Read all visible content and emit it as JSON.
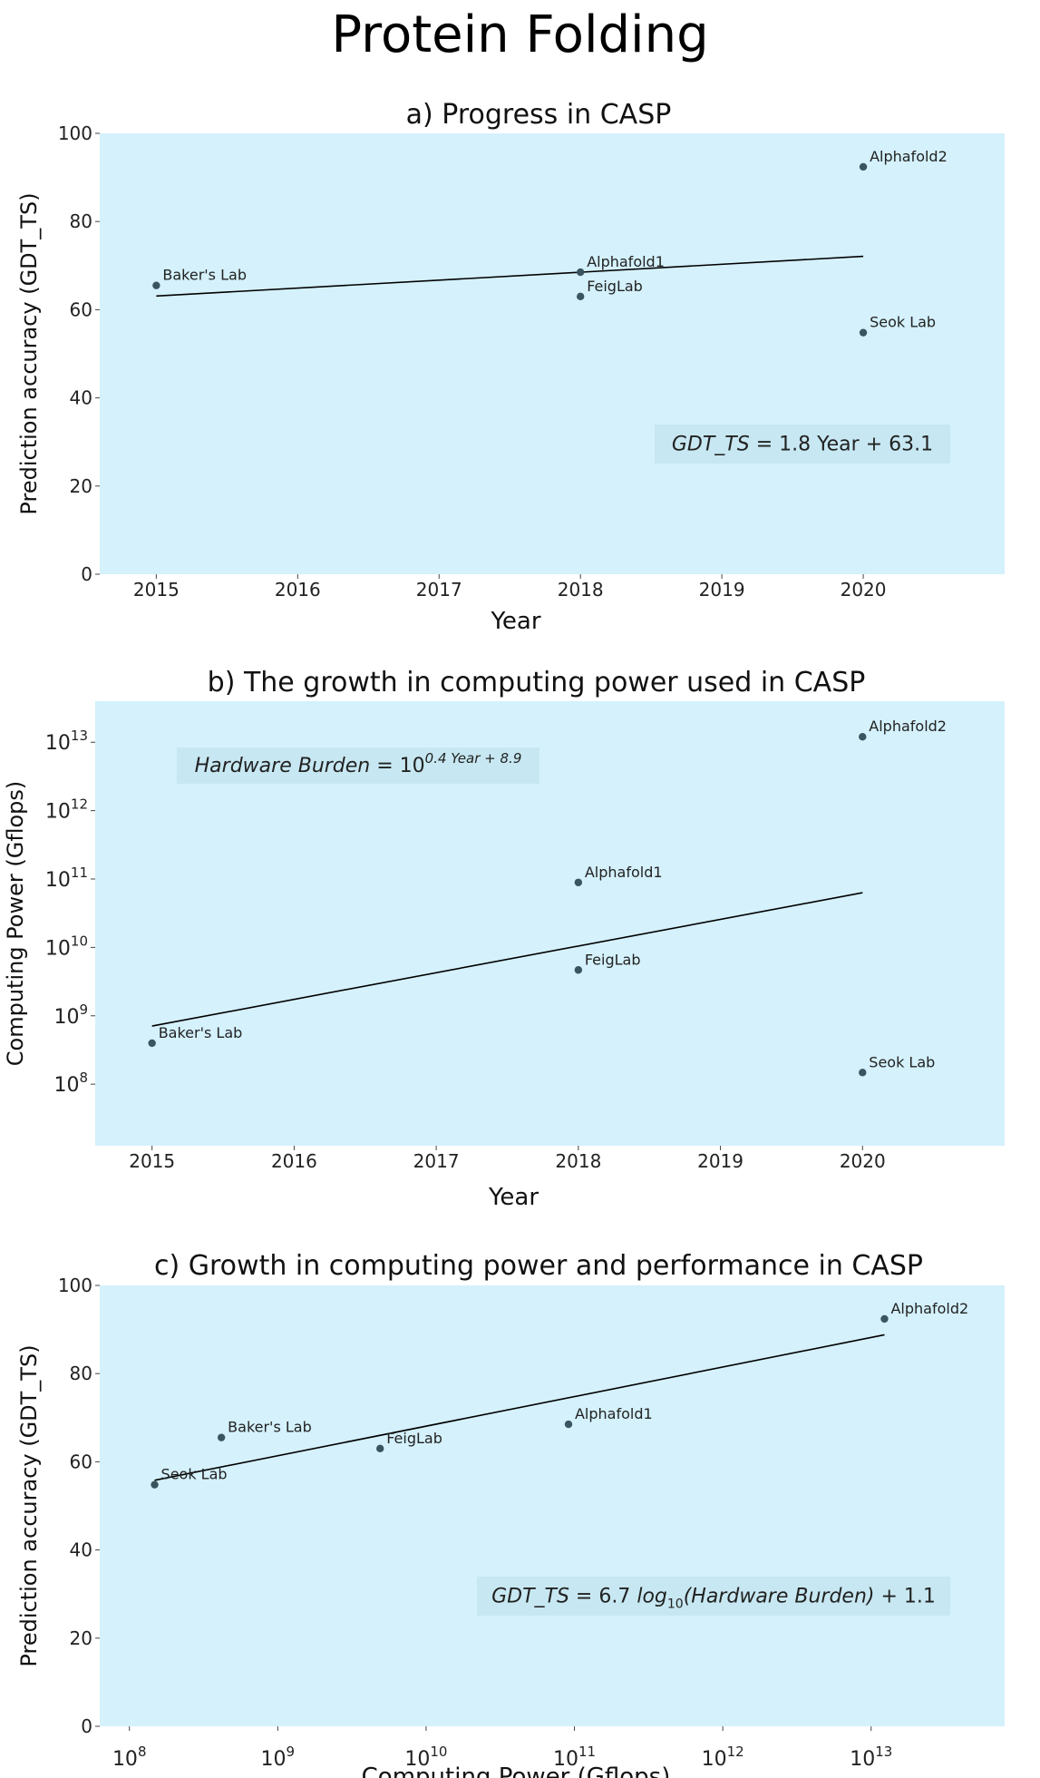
{
  "page_title": "Protein Folding",
  "colors": {
    "panel_bg": "#d4f1fc",
    "point": "#3a5560",
    "line": "#000000",
    "eq_box": "#c7e8f2"
  },
  "chart_data": [
    {
      "id": "a",
      "type": "scatter",
      "title": "a) Progress in CASP",
      "xlabel": "Year",
      "ylabel": "Prediction accuracy (GDT_TS)",
      "xscale": "linear",
      "yscale": "linear",
      "xlim": [
        2014.6,
        2021.0
      ],
      "ylim": [
        0,
        100
      ],
      "xticks": [
        2015,
        2016,
        2017,
        2018,
        2019,
        2020
      ],
      "xtick_labels": [
        "2015",
        "2016",
        "2017",
        "2018",
        "2019",
        "2020"
      ],
      "yticks": [
        0,
        20,
        40,
        60,
        80,
        100
      ],
      "ytick_labels": [
        "0",
        "20",
        "40",
        "60",
        "80",
        "100"
      ],
      "points": [
        {
          "label": "Baker's Lab",
          "x": 2015,
          "y": 65.5
        },
        {
          "label": "Alphafold1",
          "x": 2018,
          "y": 68.5
        },
        {
          "label": "FeigLab",
          "x": 2018,
          "y": 63.0
        },
        {
          "label": "Alphafold2",
          "x": 2020,
          "y": 92.4
        },
        {
          "label": "Seok Lab",
          "x": 2020,
          "y": 54.8
        }
      ],
      "fit_line": {
        "x1": 2015,
        "y1": 63.1,
        "x2": 2020,
        "y2": 72.1
      },
      "equation": {
        "lhs": "GDT_TS",
        "rhs": " = 1.8 Year + 63.1",
        "position": "lower-right"
      }
    },
    {
      "id": "b",
      "type": "scatter",
      "title": "b) The growth in computing power used in CASP",
      "xlabel": "Year",
      "ylabel": "Computing Power (Gflops)",
      "xscale": "linear",
      "yscale": "log",
      "xlim": [
        2014.6,
        2021.0
      ],
      "ylim": [
        7.1,
        13.6
      ],
      "xticks": [
        2015,
        2016,
        2017,
        2018,
        2019,
        2020
      ],
      "xtick_labels": [
        "2015",
        "2016",
        "2017",
        "2018",
        "2019",
        "2020"
      ],
      "yticks": [
        8,
        9,
        10,
        11,
        12,
        13
      ],
      "ytick_labels": [
        "8",
        "9",
        "10",
        "11",
        "12",
        "13"
      ],
      "ytick_base": "10",
      "points": [
        {
          "label": "Baker's Lab",
          "x": 2015,
          "y": 8.6
        },
        {
          "label": "Alphafold1",
          "x": 2018,
          "y": 10.95
        },
        {
          "label": "FeigLab",
          "x": 2018,
          "y": 9.67
        },
        {
          "label": "Alphafold2",
          "x": 2020,
          "y": 13.08
        },
        {
          "label": "Seok Lab",
          "x": 2020,
          "y": 8.17
        }
      ],
      "fit_line": {
        "x1": 2015,
        "y1": 8.85,
        "x2": 2020,
        "y2": 10.8
      },
      "equation": {
        "lhs": "Hardware Burden",
        "rhs_base": " = 10",
        "rhs_exp": "0.4 Year + 8.9",
        "position": "top-left"
      }
    },
    {
      "id": "c",
      "type": "scatter",
      "title": "c) Growth in computing power and performance in CASP",
      "xlabel": "Computing Power (Gflops)",
      "ylabel": "Prediction accuracy (GDT_TS)",
      "xscale": "log",
      "yscale": "linear",
      "xlim": [
        7.8,
        13.9
      ],
      "ylim": [
        0,
        100
      ],
      "xticks": [
        8,
        9,
        10,
        11,
        12,
        13
      ],
      "xtick_labels": [
        "8",
        "9",
        "10",
        "11",
        "12",
        "13"
      ],
      "xtick_base": "10",
      "yticks": [
        0,
        20,
        40,
        60,
        80,
        100
      ],
      "ytick_labels": [
        "0",
        "20",
        "40",
        "60",
        "80",
        "100"
      ],
      "points": [
        {
          "label": "Seok Lab",
          "x": 8.17,
          "y": 54.8
        },
        {
          "label": "Baker's Lab",
          "x": 8.62,
          "y": 65.5
        },
        {
          "label": "FeigLab",
          "x": 9.69,
          "y": 63.0
        },
        {
          "label": "Alphafold1",
          "x": 10.96,
          "y": 68.5
        },
        {
          "label": "Alphafold2",
          "x": 13.09,
          "y": 92.4
        }
      ],
      "fit_line": {
        "x1": 8.17,
        "y1": 55.8,
        "x2": 13.09,
        "y2": 88.8
      },
      "equation": {
        "lhs": "GDT_TS",
        "mid": " = 6.7 ",
        "log": "log",
        "log_sub": "10",
        "arg": "(Hardware Burden)",
        "tail": " + 1.1",
        "position": "lower-right"
      }
    }
  ]
}
